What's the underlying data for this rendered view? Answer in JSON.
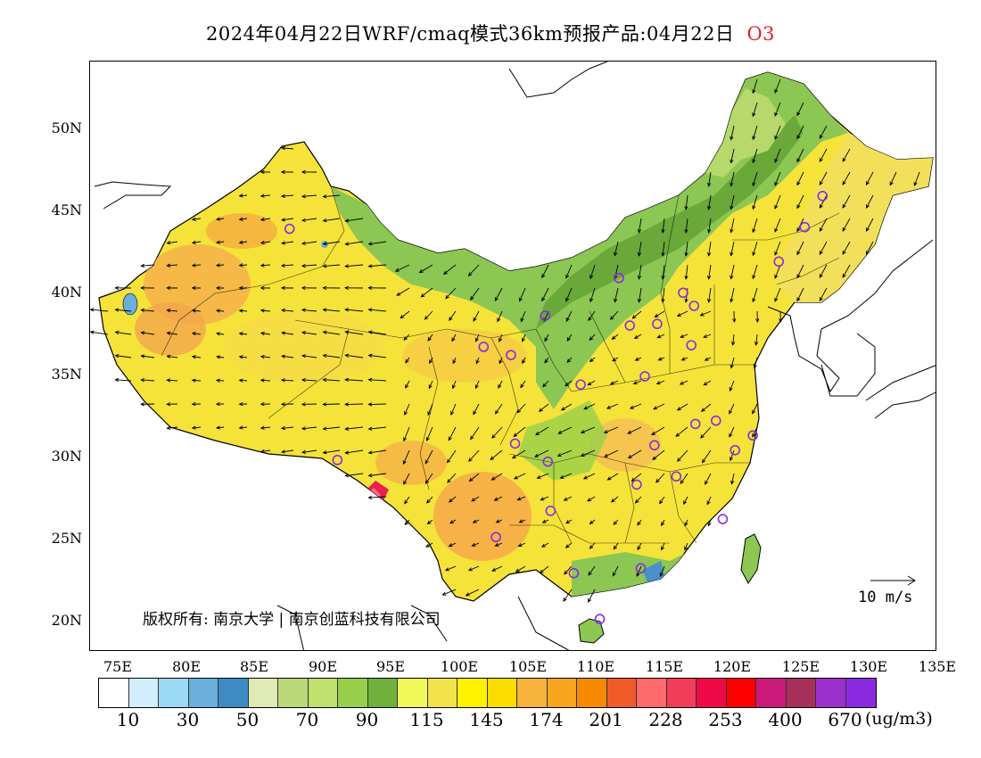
{
  "title": {
    "text": "2024年04月22日WRF/cmaq模式36km预报产品:04月22日",
    "species": "O3"
  },
  "axes": {
    "lat_labels": [
      "50N",
      "45N",
      "40N",
      "35N",
      "30N",
      "25N",
      "20N"
    ],
    "lon_labels": [
      "75E",
      "80E",
      "85E",
      "90E",
      "95E",
      "100E",
      "105E",
      "110E",
      "115E",
      "120E",
      "125E",
      "130E",
      "135E"
    ],
    "lat_range": [
      18,
      54
    ],
    "lon_range": [
      73,
      135
    ]
  },
  "copyright": "版权所有: 南京大学 | 南京创蓝科技有限公司",
  "vector_reference": "10 m/s",
  "colorbar": {
    "colors": [
      "#ffffff",
      "#d2eefc",
      "#9bd9f5",
      "#6aafdc",
      "#3e8bc4",
      "#dfeab4",
      "#bcd97a",
      "#c0e070",
      "#97cf4a",
      "#6fb13c",
      "#f1f85a",
      "#f2e24c",
      "#fff200",
      "#fddc00",
      "#f7b23c",
      "#f7a51e",
      "#f88a00",
      "#f05a28",
      "#ff6a6a",
      "#f23c5a",
      "#ee0a46",
      "#ff0000",
      "#cc1a7a",
      "#a6305a",
      "#9b30cc",
      "#8a2be2"
    ],
    "labels": [
      "10",
      "30",
      "50",
      "70",
      "90",
      "115",
      "145",
      "174",
      "201",
      "228",
      "253",
      "400",
      "670"
    ],
    "units": "(ug/m3)"
  },
  "legend_colors": {
    "land_base": "#f5e33a",
    "green": "#8cc653",
    "dark_green": "#6aa83a",
    "orange": "#f6a94a",
    "red": "#e8204a",
    "blue": "#4a90c8",
    "station_ring": "#8a2be2"
  },
  "stations": [
    {
      "lon": 87.6,
      "lat": 43.8
    },
    {
      "lon": 91.1,
      "lat": 29.7
    },
    {
      "lon": 101.8,
      "lat": 36.6
    },
    {
      "lon": 103.8,
      "lat": 36.1
    },
    {
      "lon": 106.3,
      "lat": 38.5
    },
    {
      "lon": 111.7,
      "lat": 40.8
    },
    {
      "lon": 112.5,
      "lat": 37.9
    },
    {
      "lon": 114.5,
      "lat": 38.0
    },
    {
      "lon": 116.4,
      "lat": 39.9
    },
    {
      "lon": 117.2,
      "lat": 39.1
    },
    {
      "lon": 117.0,
      "lat": 36.7
    },
    {
      "lon": 113.6,
      "lat": 34.8
    },
    {
      "lon": 108.9,
      "lat": 34.3
    },
    {
      "lon": 104.1,
      "lat": 30.7
    },
    {
      "lon": 106.5,
      "lat": 29.6
    },
    {
      "lon": 114.3,
      "lat": 30.6
    },
    {
      "lon": 117.3,
      "lat": 31.9
    },
    {
      "lon": 118.8,
      "lat": 32.1
    },
    {
      "lon": 121.5,
      "lat": 31.2
    },
    {
      "lon": 120.2,
      "lat": 30.3
    },
    {
      "lon": 115.9,
      "lat": 28.7
    },
    {
      "lon": 113.0,
      "lat": 28.2
    },
    {
      "lon": 106.7,
      "lat": 26.6
    },
    {
      "lon": 102.7,
      "lat": 25.0
    },
    {
      "lon": 108.4,
      "lat": 22.8
    },
    {
      "lon": 113.3,
      "lat": 23.1
    },
    {
      "lon": 119.3,
      "lat": 26.1
    },
    {
      "lon": 110.3,
      "lat": 20.0
    },
    {
      "lon": 123.4,
      "lat": 41.8
    },
    {
      "lon": 125.3,
      "lat": 43.9
    },
    {
      "lon": 126.6,
      "lat": 45.8
    }
  ]
}
